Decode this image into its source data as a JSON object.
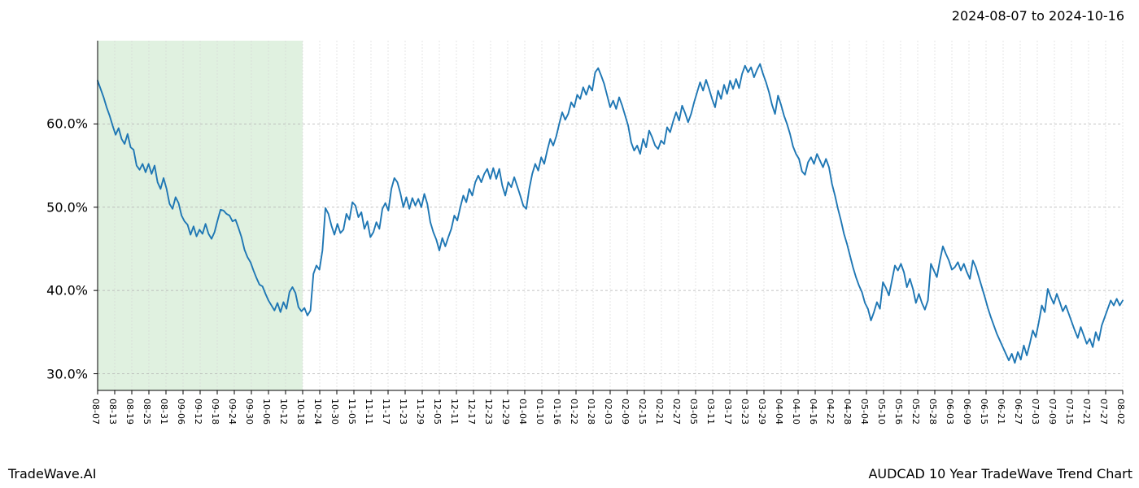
{
  "header": {
    "date_range": "2024-08-07 to 2024-10-16"
  },
  "footer": {
    "left": "TradeWave.AI",
    "right": "AUDCAD 10 Year TradeWave Trend Chart"
  },
  "chart": {
    "type": "line",
    "background_color": "#ffffff",
    "line_color": "#1f77b4",
    "line_width": 1.9,
    "highlight_band": {
      "fill": "#2ca02c",
      "opacity": 0.15,
      "from": "08-07",
      "to": "10-18"
    },
    "grid": {
      "major_color": "#b0b0b0",
      "major_dash": "3,3",
      "minor_color": "#d5d5d5",
      "minor_dash": "2,2",
      "major_width": 0.8,
      "minor_width": 0.6
    },
    "spines": {
      "left": true,
      "bottom": true,
      "color": "#000000",
      "width": 1.0
    },
    "ylabel_fontsize": 16,
    "xlabel_fontsize": 11,
    "footer_fontsize": 16,
    "header_fontsize": 16,
    "ylim": [
      28,
      70
    ],
    "yticks": [
      30.0,
      40.0,
      50.0,
      60.0
    ],
    "ytick_labels": [
      "30.0%",
      "40.0%",
      "50.0%",
      "60.0%"
    ],
    "xtick_labels": [
      "08-07",
      "08-13",
      "08-19",
      "08-25",
      "08-31",
      "09-06",
      "09-12",
      "09-18",
      "09-24",
      "09-30",
      "10-06",
      "10-12",
      "10-18",
      "10-24",
      "10-30",
      "11-05",
      "11-11",
      "11-17",
      "11-23",
      "11-29",
      "12-05",
      "12-11",
      "12-17",
      "12-23",
      "12-29",
      "01-04",
      "01-10",
      "01-16",
      "01-22",
      "01-28",
      "02-03",
      "02-09",
      "02-15",
      "02-21",
      "02-27",
      "03-05",
      "03-11",
      "03-17",
      "03-23",
      "03-29",
      "04-04",
      "04-10",
      "04-16",
      "04-22",
      "04-28",
      "05-04",
      "05-10",
      "05-16",
      "05-22",
      "05-28",
      "06-03",
      "06-09",
      "06-15",
      "06-21",
      "06-27",
      "07-03",
      "07-09",
      "07-15",
      "07-21",
      "07-27",
      "08-02"
    ],
    "series": {
      "values": [
        65.2,
        64.2,
        63.2,
        62.0,
        61.0,
        59.8,
        58.7,
        59.5,
        58.2,
        57.6,
        58.8,
        57.2,
        56.9,
        55.0,
        54.5,
        55.2,
        54.2,
        55.2,
        54.0,
        55.0,
        53.0,
        52.2,
        53.5,
        52.2,
        50.4,
        49.8,
        51.2,
        50.5,
        49.0,
        48.3,
        47.9,
        46.7,
        47.7,
        46.5,
        47.3,
        46.8,
        48.0,
        46.8,
        46.2,
        47.0,
        48.4,
        49.7,
        49.6,
        49.2,
        49.0,
        48.3,
        48.5,
        47.5,
        46.4,
        44.9,
        44.0,
        43.4,
        42.4,
        41.5,
        40.7,
        40.5,
        39.6,
        38.8,
        38.2,
        37.6,
        38.5,
        37.4,
        38.6,
        37.8,
        39.8,
        40.4,
        39.7,
        38.0,
        37.5,
        37.9,
        37.0,
        37.6,
        42.0,
        43.0,
        42.5,
        44.8,
        49.9,
        49.2,
        47.8,
        46.7,
        48.0,
        46.9,
        47.3,
        49.2,
        48.5,
        50.6,
        50.2,
        48.8,
        49.4,
        47.4,
        48.3,
        46.4,
        47.0,
        48.2,
        47.4,
        49.8,
        50.5,
        49.6,
        52.2,
        53.5,
        53.0,
        51.7,
        50.0,
        51.2,
        49.8,
        51.1,
        50.2,
        51.0,
        50.0,
        51.6,
        50.4,
        48.2,
        47.0,
        46.1,
        44.8,
        46.3,
        45.3,
        46.4,
        47.4,
        49.0,
        48.4,
        50.0,
        51.4,
        50.6,
        52.2,
        51.4,
        53.0,
        53.8,
        53.0,
        54.0,
        54.6,
        53.4,
        54.7,
        53.4,
        54.6,
        52.6,
        51.4,
        53.0,
        52.4,
        53.6,
        52.5,
        51.4,
        50.2,
        49.8,
        52.2,
        54.0,
        55.2,
        54.4,
        56.0,
        55.2,
        56.8,
        58.2,
        57.4,
        58.5,
        60.0,
        61.4,
        60.5,
        61.2,
        62.6,
        62.0,
        63.5,
        63.0,
        64.4,
        63.5,
        64.6,
        64.0,
        66.2,
        66.7,
        65.8,
        64.8,
        63.4,
        62.0,
        62.8,
        61.8,
        63.2,
        62.2,
        61.0,
        59.8,
        57.8,
        56.8,
        57.4,
        56.4,
        58.2,
        57.2,
        59.2,
        58.4,
        57.4,
        57.0,
        58.0,
        57.6,
        59.6,
        59.0,
        60.3,
        61.4,
        60.4,
        62.2,
        61.3,
        60.2,
        61.2,
        62.6,
        63.8,
        65.0,
        64.0,
        65.3,
        64.2,
        63.0,
        62.0,
        64.0,
        63.0,
        64.7,
        63.6,
        65.2,
        64.2,
        65.4,
        64.3,
        66.0,
        67.0,
        66.2,
        66.8,
        65.6,
        66.5,
        67.2,
        66.0,
        65.0,
        63.8,
        62.3,
        61.2,
        63.4,
        62.3,
        61.0,
        60.0,
        58.8,
        57.3,
        56.4,
        55.8,
        54.3,
        53.9,
        55.4,
        56.0,
        55.2,
        56.4,
        55.6,
        54.8,
        55.8,
        54.8,
        52.8,
        51.4,
        49.8,
        48.4,
        46.8,
        45.6,
        44.2,
        42.8,
        41.6,
        40.6,
        39.8,
        38.5,
        37.8,
        36.4,
        37.4,
        38.6,
        37.8,
        41.0,
        40.3,
        39.4,
        41.2,
        43.0,
        42.4,
        43.2,
        42.2,
        40.4,
        41.4,
        40.2,
        38.5,
        39.6,
        38.5,
        37.7,
        38.8,
        43.2,
        42.4,
        41.6,
        43.6,
        45.3,
        44.4,
        43.6,
        42.5,
        42.8,
        43.4,
        42.4,
        43.2,
        42.2,
        41.4,
        43.6,
        42.8,
        41.6,
        40.4,
        39.2,
        37.9,
        36.8,
        35.8,
        34.8,
        34.0,
        33.2,
        32.4,
        31.6,
        32.4,
        31.3,
        32.6,
        31.7,
        33.4,
        32.2,
        33.6,
        35.2,
        34.4,
        36.2,
        38.2,
        37.4,
        40.2,
        39.2,
        38.4,
        39.6,
        38.6,
        37.5,
        38.2,
        37.2,
        36.2,
        35.2,
        34.3,
        35.6,
        34.6,
        33.6,
        34.2,
        33.2,
        35.0,
        34.0,
        35.8,
        36.8,
        37.8,
        38.8,
        38.2,
        39.0,
        38.2,
        38.8
      ]
    }
  }
}
